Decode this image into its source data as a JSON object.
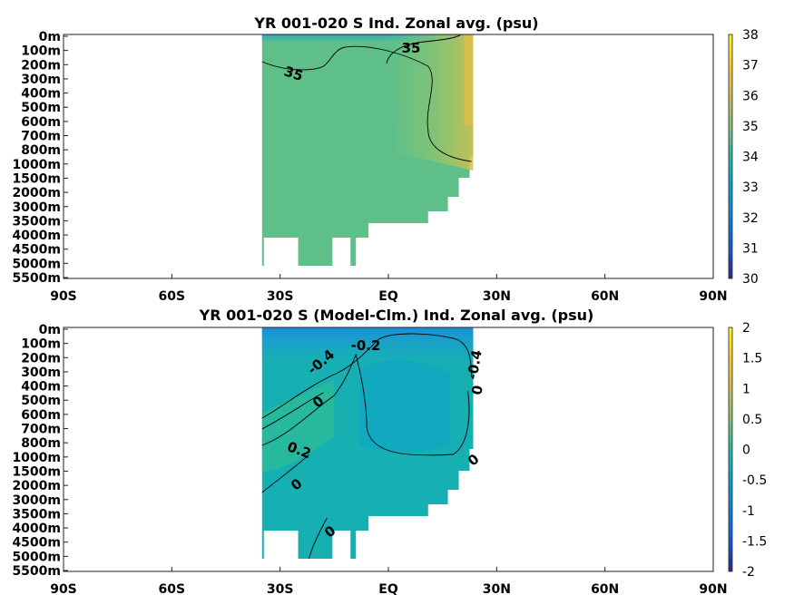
{
  "chart_data": [
    {
      "type": "heatmap",
      "title": "YR 001-020 S Ind. Zonal avg. (psu)",
      "x_ticks": [
        "90S",
        "60S",
        "30S",
        "EQ",
        "30N",
        "60N",
        "90N"
      ],
      "x_range": [
        -90,
        90
      ],
      "y_ticks": [
        "0m",
        "100m",
        "200m",
        "300m",
        "400m",
        "500m",
        "600m",
        "700m",
        "800m",
        "1000m",
        "1500m",
        "2000m",
        "3000m",
        "3500m",
        "4000m",
        "4500m",
        "5000m",
        "5500m"
      ],
      "y_reversed": true,
      "colorbar": {
        "min": 30,
        "max": 38,
        "ticks": [
          "30",
          "31",
          "32",
          "33",
          "34",
          "35",
          "36",
          "37",
          "38"
        ],
        "colormap": "parula"
      },
      "contour_labels": [
        "35",
        "35"
      ],
      "data_extent_lat": [
        -35,
        25
      ],
      "grid": false
    },
    {
      "type": "heatmap",
      "title": "YR 001-020 S (Model-Clm.) Ind. Zonal avg. (psu)",
      "x_ticks": [
        "90S",
        "60S",
        "30S",
        "EQ",
        "30N",
        "60N",
        "90N"
      ],
      "x_range": [
        -90,
        90
      ],
      "y_ticks": [
        "0m",
        "100m",
        "200m",
        "300m",
        "400m",
        "500m",
        "600m",
        "700m",
        "800m",
        "1000m",
        "1500m",
        "2000m",
        "3000m",
        "3500m",
        "4000m",
        "4500m",
        "5000m",
        "5500m"
      ],
      "y_reversed": true,
      "colorbar": {
        "min": -2,
        "max": 2,
        "ticks": [
          "-2",
          "-1.5",
          "-1",
          "-0.5",
          "0",
          "0.5",
          "1",
          "1.5",
          "2"
        ],
        "colormap": "parula"
      },
      "contour_labels": [
        "-0.4",
        "-0.2",
        "0",
        "0.2",
        "0",
        "0",
        "0",
        "-0.4",
        "0"
      ],
      "data_extent_lat": [
        -35,
        25
      ],
      "grid": false
    }
  ]
}
